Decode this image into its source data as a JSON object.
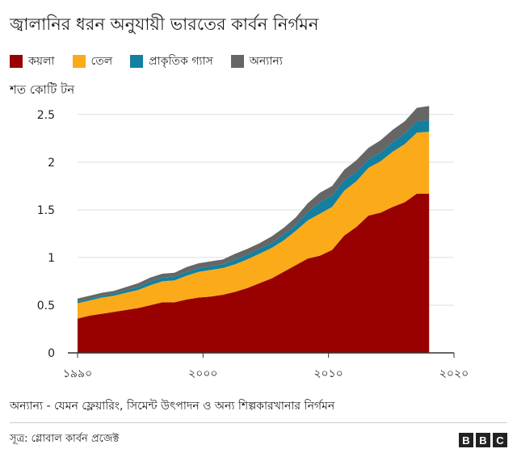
{
  "title": "জ্বালানির ধরন অনুযায়ী ভারতের কার্বন নির্গমন",
  "unit_label": "শত কোটি টন",
  "note": "অন্যান্য - যেমন ফ্লেয়ারিং, সিমেন্ট উৎপাদন ও অন্য শিল্পকারখানার নির্গমন",
  "source": "সূত্র: গ্লোবাল কার্বন প্রজেক্ট",
  "logo": [
    "B",
    "B",
    "C"
  ],
  "chart_data": {
    "type": "area",
    "stacked": true,
    "x": [
      1990,
      1991,
      1992,
      1993,
      1994,
      1995,
      1996,
      1997,
      1998,
      1999,
      2000,
      2001,
      2002,
      2003,
      2004,
      2005,
      2006,
      2007,
      2008,
      2009,
      2010,
      2011,
      2012,
      2013,
      2014,
      2015,
      2016,
      2017,
      2018,
      2019
    ],
    "series": [
      {
        "name": "কয়লা",
        "color": "#990000",
        "values": [
          0.36,
          0.39,
          0.41,
          0.43,
          0.45,
          0.47,
          0.5,
          0.53,
          0.53,
          0.56,
          0.58,
          0.59,
          0.61,
          0.64,
          0.68,
          0.73,
          0.78,
          0.85,
          0.92,
          0.99,
          1.02,
          1.08,
          1.23,
          1.32,
          1.44,
          1.47,
          1.53,
          1.58,
          1.67,
          1.67
        ]
      },
      {
        "name": "তেল",
        "color": "#fbaa19",
        "values": [
          0.16,
          0.16,
          0.17,
          0.17,
          0.18,
          0.19,
          0.21,
          0.22,
          0.23,
          0.25,
          0.27,
          0.28,
          0.28,
          0.29,
          0.3,
          0.31,
          0.32,
          0.33,
          0.36,
          0.4,
          0.44,
          0.45,
          0.47,
          0.48,
          0.5,
          0.54,
          0.58,
          0.61,
          0.64,
          0.65
        ]
      },
      {
        "name": "প্রাকৃতিক গ্যাস",
        "color": "#1380a1",
        "values": [
          0.02,
          0.02,
          0.02,
          0.02,
          0.03,
          0.03,
          0.04,
          0.04,
          0.04,
          0.04,
          0.04,
          0.04,
          0.04,
          0.05,
          0.05,
          0.05,
          0.05,
          0.06,
          0.06,
          0.09,
          0.12,
          0.12,
          0.11,
          0.1,
          0.09,
          0.09,
          0.1,
          0.11,
          0.12,
          0.12
        ]
      },
      {
        "name": "অন্যান্য",
        "color": "#588181",
        "values": [
          0.03,
          0.03,
          0.03,
          0.03,
          0.03,
          0.04,
          0.04,
          0.04,
          0.04,
          0.05,
          0.05,
          0.05,
          0.05,
          0.06,
          0.06,
          0.06,
          0.07,
          0.07,
          0.08,
          0.09,
          0.1,
          0.1,
          0.11,
          0.12,
          0.12,
          0.13,
          0.13,
          0.13,
          0.14,
          0.15
        ]
      }
    ],
    "series_colors_override": [
      "#990000",
      "#fbaa19",
      "#1380a1",
      "#666666"
    ],
    "y_ticks": [
      0,
      0.5,
      1,
      1.5,
      2,
      2.5
    ],
    "y_tick_labels": [
      "0",
      "0.5",
      "1",
      "1.5",
      "2",
      "2.5"
    ],
    "x_ticks": [
      1990,
      2000,
      2010,
      2020
    ],
    "x_tick_labels": [
      "১৯৯০",
      "২০০০",
      "২০১০",
      "২০২০"
    ],
    "ylim": [
      0,
      2.6
    ],
    "xlim": [
      1990,
      2020
    ],
    "grid": true,
    "legend_position": "top-left"
  }
}
